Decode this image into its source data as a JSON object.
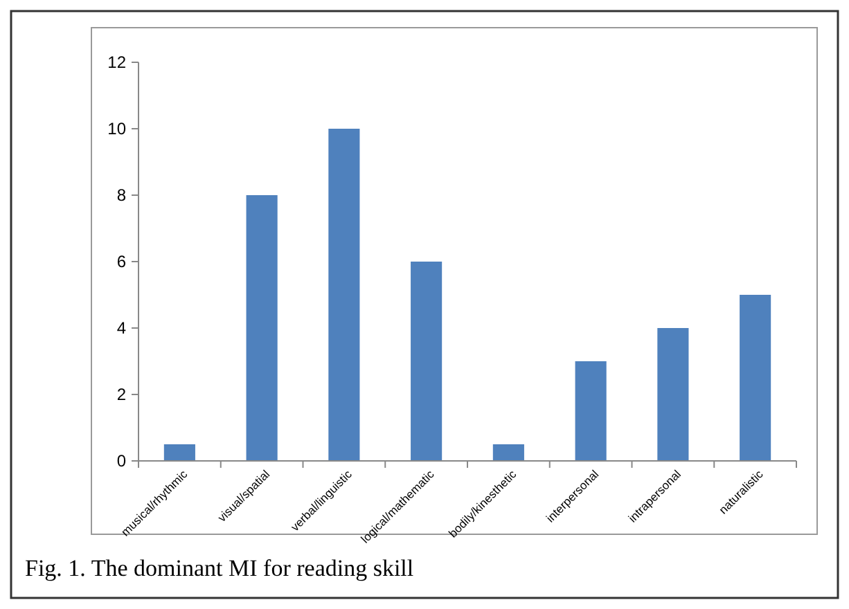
{
  "chart_data": {
    "type": "bar",
    "categories": [
      "musical/rhythmic",
      "visual/spatial",
      "verbal/linguistic",
      "logical/mathematic",
      "bodily/kinesthetic",
      "interpersonal",
      "intrapersonal",
      "naturalistic"
    ],
    "values": [
      0.5,
      8,
      10,
      6,
      0.5,
      3,
      4,
      5
    ],
    "color": "#4f81bd",
    "ylim": [
      0,
      12
    ],
    "yticks": [
      0,
      2,
      4,
      6,
      8,
      10,
      12
    ],
    "annotations": [
      "Fig. 1. The dominant MI for reading skill"
    ]
  }
}
